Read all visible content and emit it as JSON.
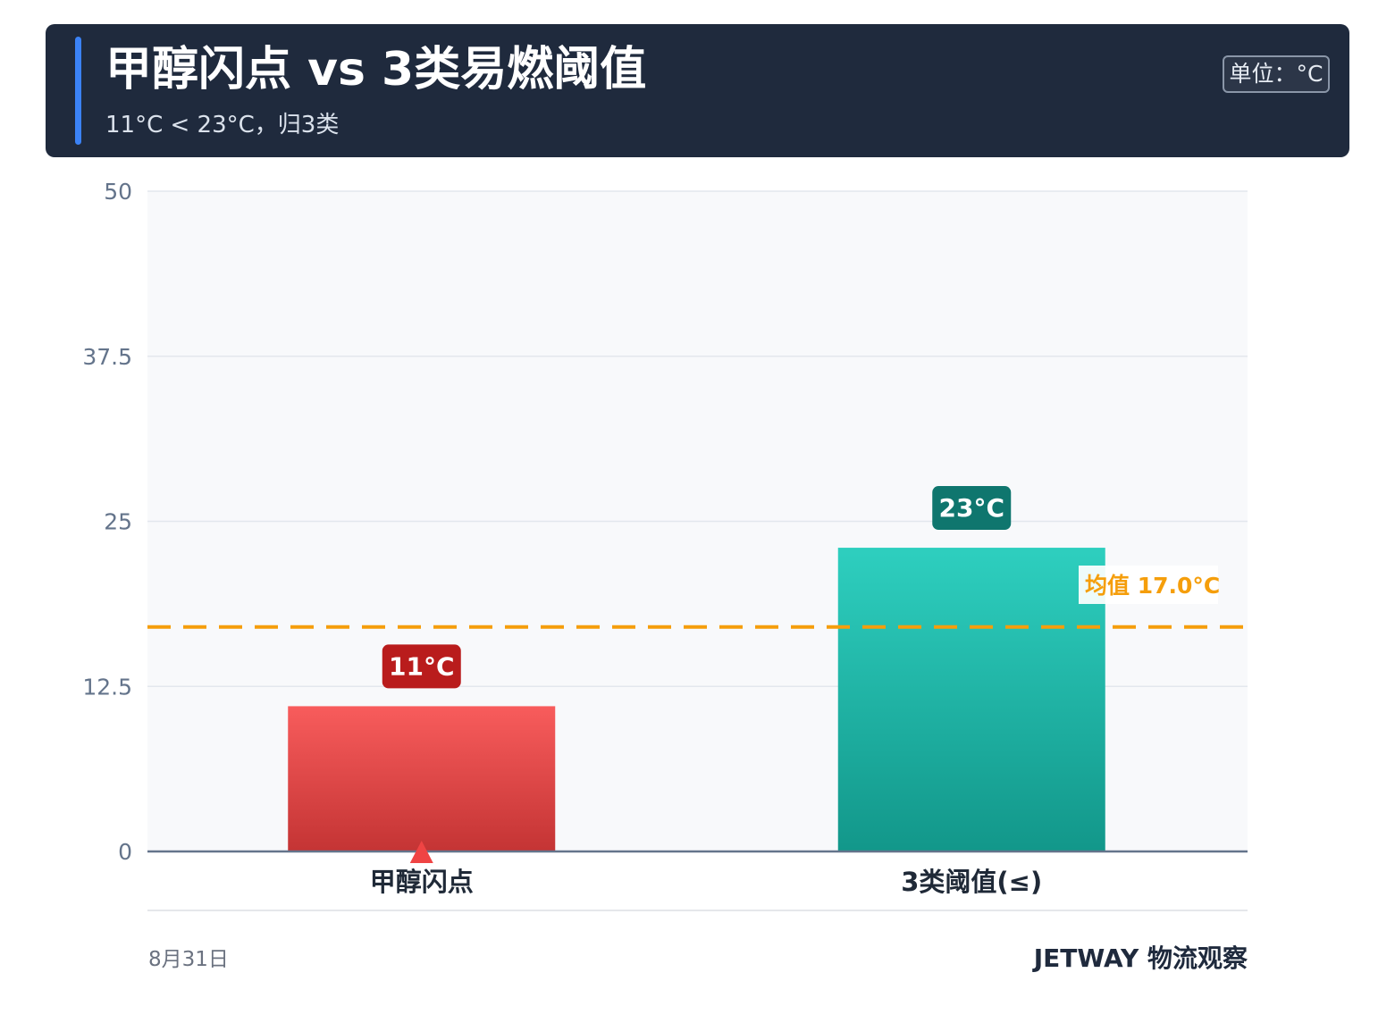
{
  "header": {
    "title": "甲醇闪点 vs 3类易燃阈值",
    "subtitle": "11°C < 23°C，归3类",
    "unit_badge": "单位：°C"
  },
  "chart_data": {
    "type": "bar",
    "categories": [
      "甲醇闪点",
      "3类阈值(≤)"
    ],
    "values": [
      11,
      23
    ],
    "value_labels": [
      "11°C",
      "23°C"
    ],
    "bar_colors": [
      {
        "top": "#f85c5c",
        "bottom": "#c43434",
        "label_bg": "#b91c1c"
      },
      {
        "top": "#2ecfbf",
        "bottom": "#12978a",
        "label_bg": "#0f766e"
      }
    ],
    "ylim": [
      0,
      50
    ],
    "yticks": [
      "0",
      "12.5",
      "25",
      "37.5",
      "50"
    ],
    "ytick_values": [
      0,
      12.5,
      25,
      37.5,
      50
    ],
    "grid": true,
    "reference_line": {
      "value": 17.0,
      "label": "均值 17.0°C",
      "color": "#f59e0b",
      "style": "dashed"
    },
    "marker": {
      "category_index": 0,
      "shape": "triangle-up",
      "color": "#ef4444"
    }
  },
  "footer": {
    "date": "8月31日",
    "brand": "JETWAY 物流观察"
  }
}
